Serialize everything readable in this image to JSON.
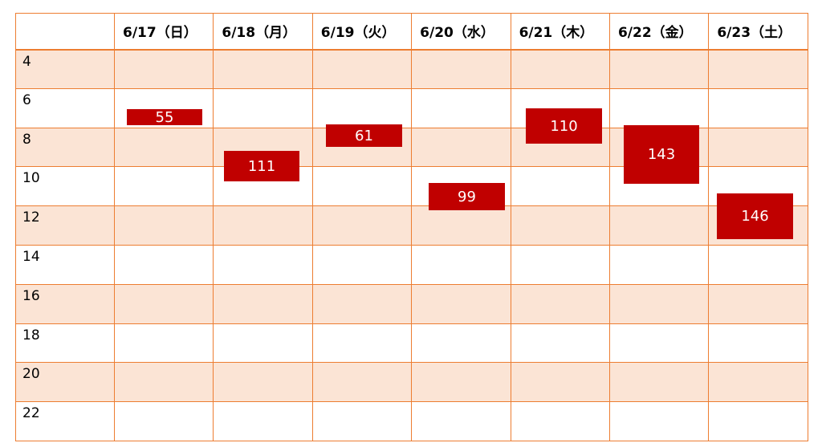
{
  "header": {
    "corner": "",
    "days": [
      "6/17（日）",
      "6/18（月）",
      "6/19（火）",
      "6/20（水）",
      "6/21（木）",
      "6/22（金）",
      "6/23（土）"
    ]
  },
  "hours": [
    "4",
    "6",
    "8",
    "10",
    "12",
    "14",
    "16",
    "18",
    "20",
    "22"
  ],
  "events": [
    {
      "day": "6/17（日）",
      "value": "55"
    },
    {
      "day": "6/18（月）",
      "value": "111"
    },
    {
      "day": "6/19（火）",
      "value": "61"
    },
    {
      "day": "6/20（水）",
      "value": "99"
    },
    {
      "day": "6/21（木）",
      "value": "110"
    },
    {
      "day": "6/22（金）",
      "value": "143"
    },
    {
      "day": "6/23（土）",
      "value": "146"
    }
  ],
  "colors": {
    "grid_line": "#ED7D31",
    "band_fill": "#FBE4D5",
    "event_fill": "#C00000",
    "event_text": "#FFFFFF"
  }
}
